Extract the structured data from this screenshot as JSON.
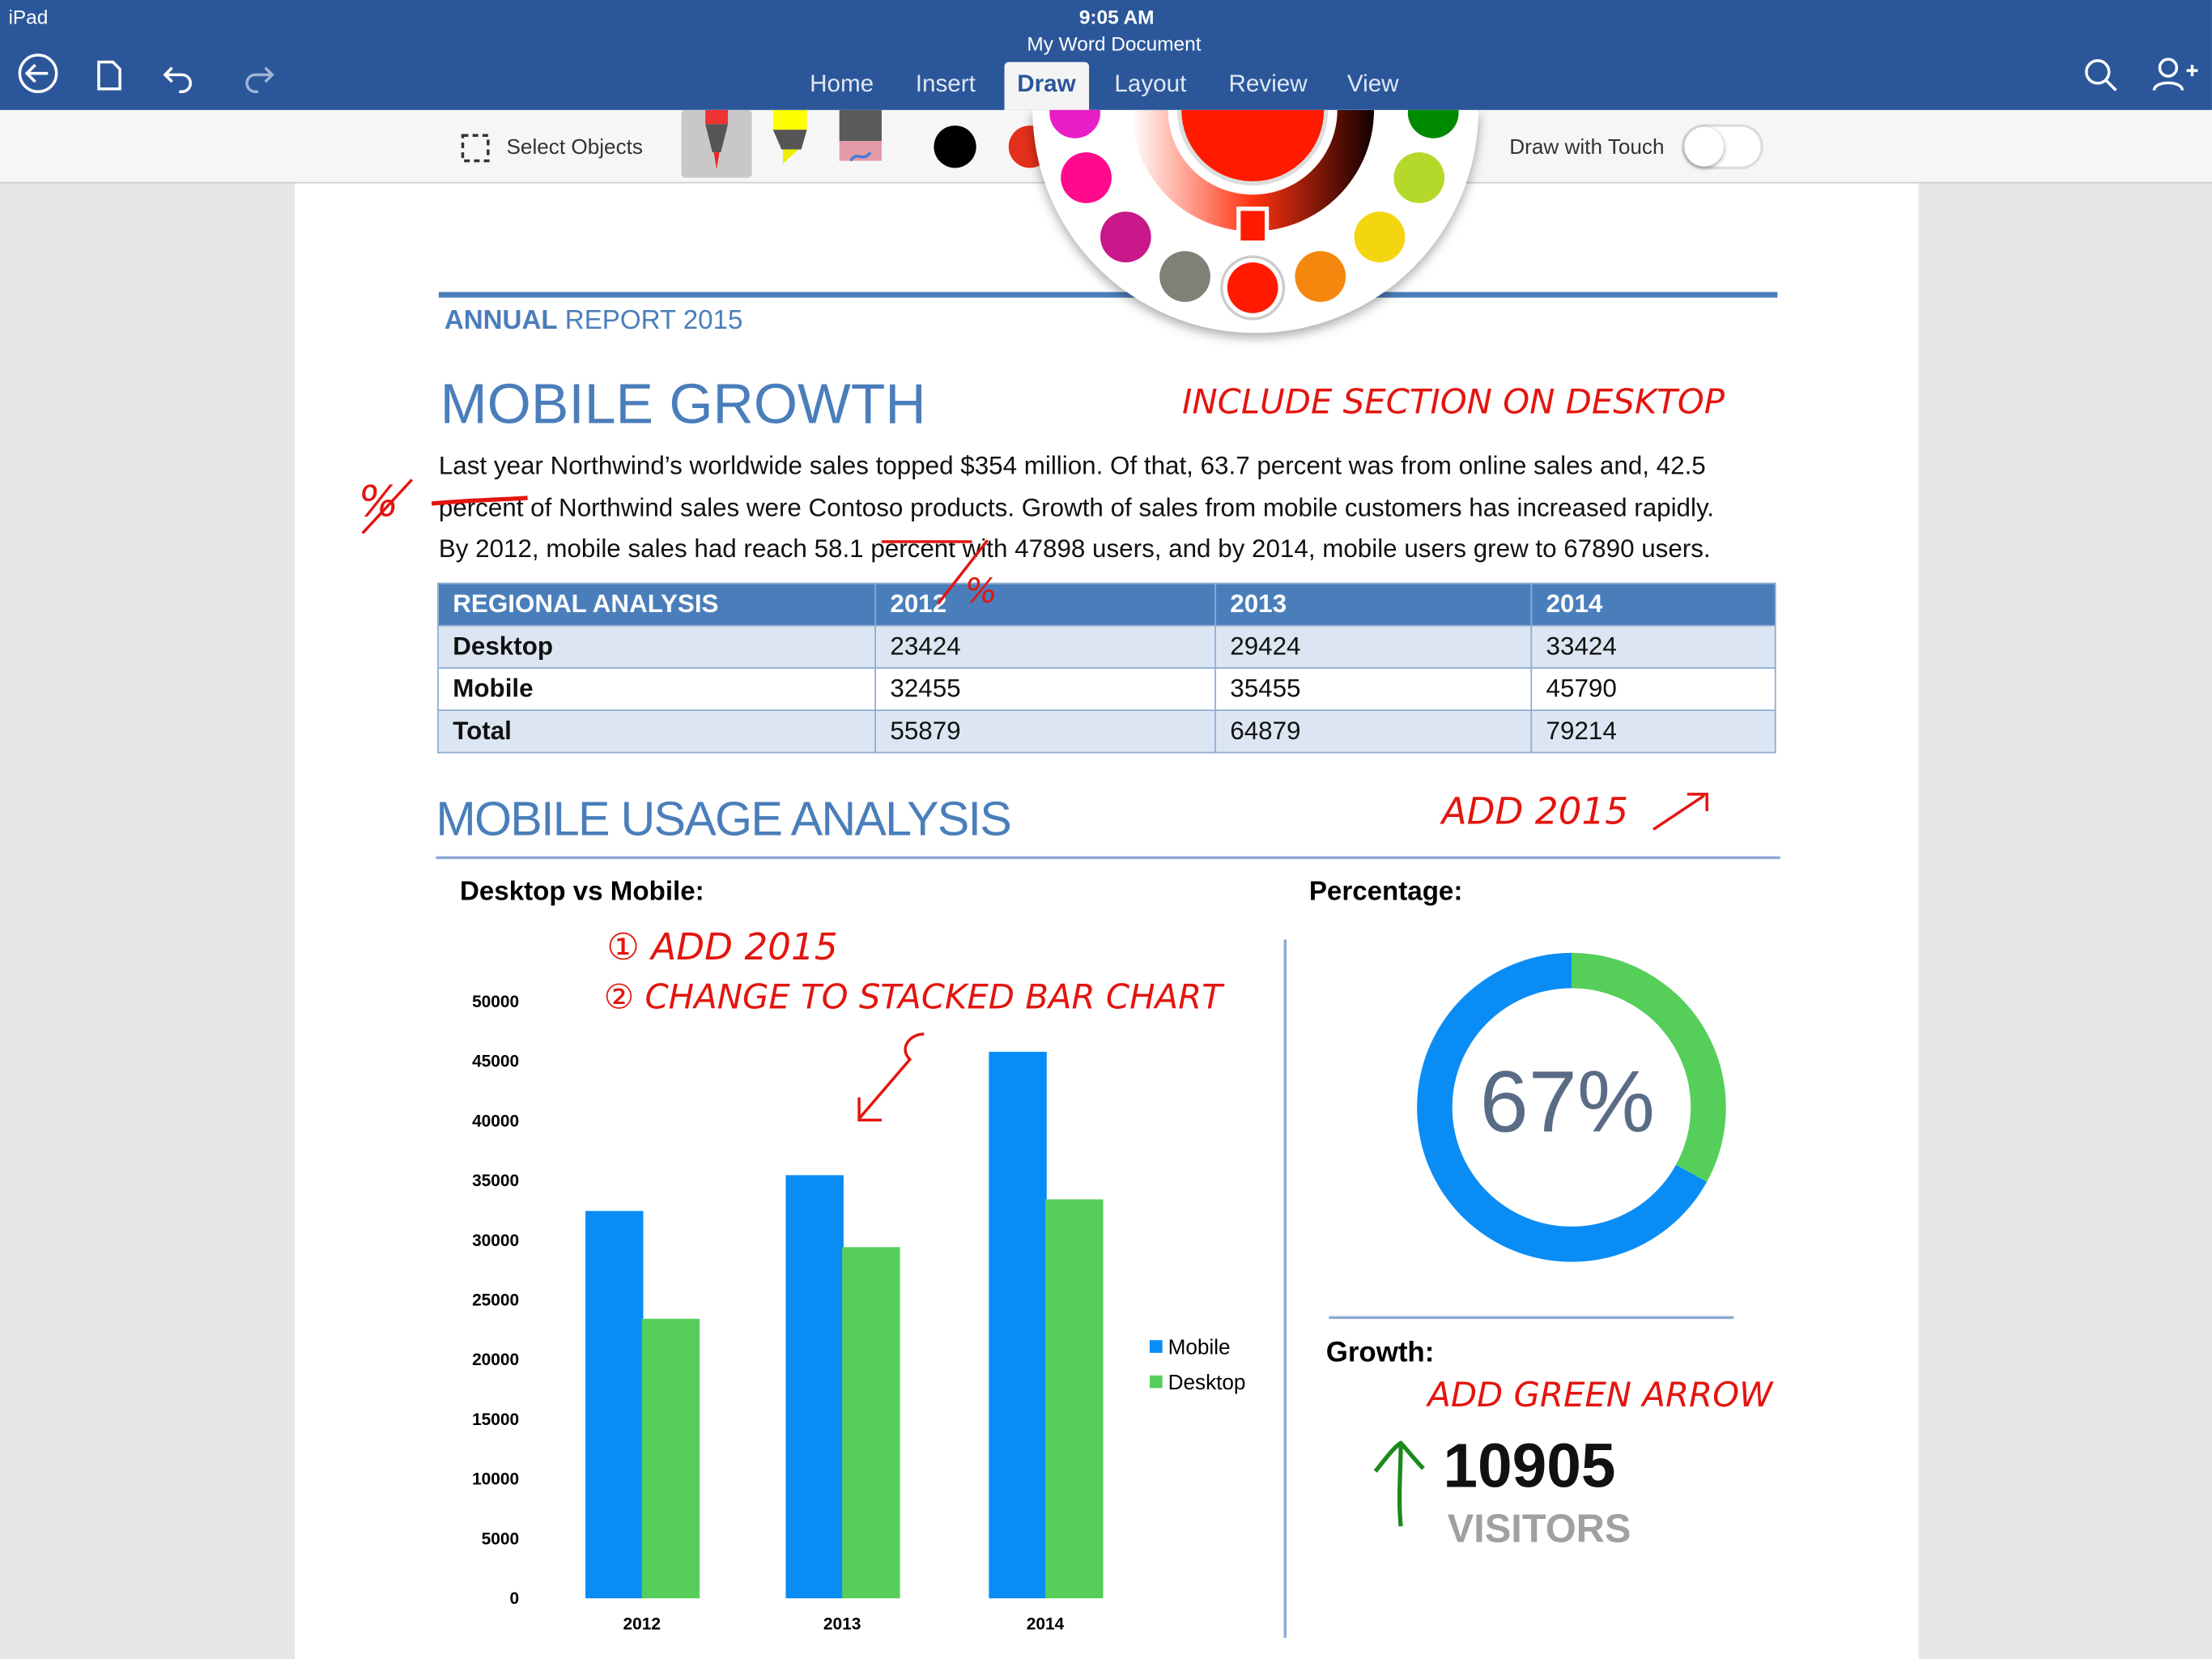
{
  "status": {
    "device": "iPad",
    "time": "9:05 AM"
  },
  "doc_title": "My Word Document",
  "tabs": [
    {
      "label": "Home"
    },
    {
      "label": "Insert"
    },
    {
      "label": "Draw",
      "active": true
    },
    {
      "label": "Layout"
    },
    {
      "label": "Review"
    },
    {
      "label": "View"
    }
  ],
  "ribbon": {
    "select_objects": "Select Objects",
    "draw_with_touch": "Draw with Touch",
    "draw_with_touch_on": false,
    "selected_color": "#ff1a00"
  },
  "palette": [
    "#e81ec6",
    "#ff0a8c",
    "#c8188a",
    "#808078",
    "#ff1a00",
    "#f5870f",
    "#f3d610",
    "#b5d92a",
    "#008a00"
  ],
  "doc": {
    "eyebrow_bold": "ANNUAL",
    "eyebrow_rest": "REPORT 2015",
    "title": "MOBILE GROWTH",
    "para": [
      "Last year Northwind’s worldwide sales topped $354 million. Of that, 63.7 percent was from online sales and, 42.5",
      "percent of Northwind sales were Contoso products. Growth of sales from mobile customers has increased rapidly.",
      "By 2012, mobile sales had reach 58.1 percent with 47898 users, and by 2014, mobile users grew to 67890 users."
    ],
    "table": {
      "headers": [
        "REGIONAL ANALYSIS",
        "2012",
        "2013",
        "2014"
      ],
      "rows": [
        [
          "Desktop",
          "23424",
          "29424",
          "33424"
        ],
        [
          "Mobile",
          "32455",
          "35455",
          "45790"
        ],
        [
          "Total",
          "55879",
          "64879",
          "79214"
        ]
      ]
    },
    "section2": "MOBILE USAGE ANALYSIS",
    "chart_title": "Desktop vs Mobile:",
    "pct_title": "Percentage:",
    "pct_value": "67%",
    "growth_title": "Growth:",
    "growth_value": "10905",
    "growth_unit": "VISITORS"
  },
  "annotations": {
    "include": "INCLUDE SECTION ON DESKTOP",
    "pct1": "%",
    "pct2": "%",
    "add2015a": "ADD 2015",
    "add2015b": "① ADD 2015",
    "change": "② CHANGE TO STACKED BAR CHART",
    "green_arrow": "ADD GREEN ARROW"
  },
  "chart_data": {
    "type": "bar",
    "categories": [
      "2012",
      "2013",
      "2014"
    ],
    "series": [
      {
        "name": "Mobile",
        "values": [
          32455,
          35455,
          45790
        ],
        "color": "#0a8cf5"
      },
      {
        "name": "Desktop",
        "values": [
          23424,
          29424,
          33424
        ],
        "color": "#55cf5a"
      }
    ],
    "ylim": [
      0,
      50000
    ],
    "yticks": [
      0,
      5000,
      10000,
      15000,
      20000,
      25000,
      30000,
      35000,
      40000,
      45000,
      50000
    ],
    "legend": "right"
  },
  "donut": {
    "type": "pie",
    "values": [
      {
        "name": "Mobile",
        "value": 67,
        "color": "#0a8cf5"
      },
      {
        "name": "Desktop",
        "value": 33,
        "color": "#55cf5a"
      }
    ]
  }
}
